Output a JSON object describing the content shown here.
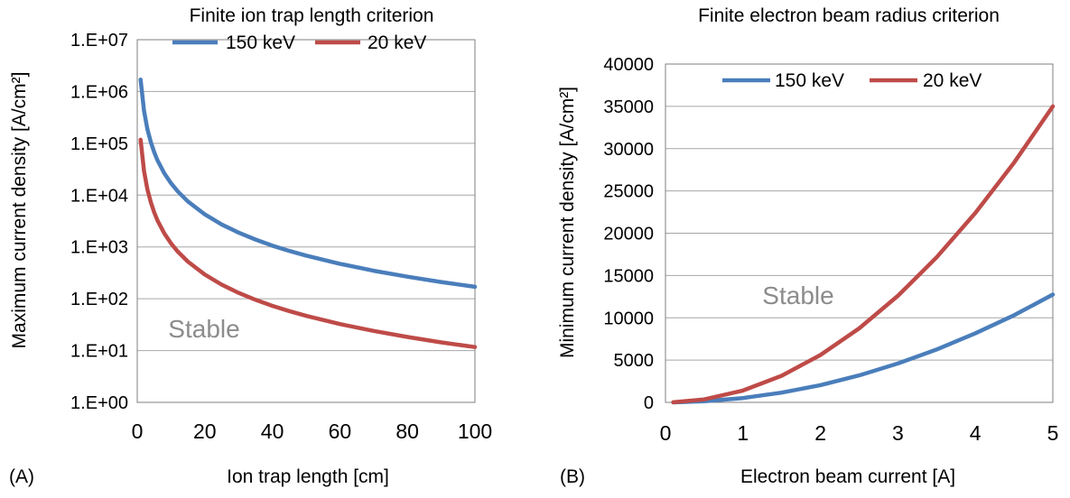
{
  "chart_data": [
    {
      "panel_label": "(A)",
      "type": "line",
      "title": "Finite ion trap length criterion",
      "xlabel": "Ion trap length [cm]",
      "ylabel": "Maximum current density [A/cm²]",
      "yscale": "log",
      "xlim": [
        0,
        100
      ],
      "ylim": [
        1,
        10000000
      ],
      "x_ticks": [
        "0",
        "20",
        "40",
        "60",
        "80",
        "100"
      ],
      "y_ticks": [
        "1.E+00",
        "1.E+01",
        "1.E+02",
        "1.E+03",
        "1.E+04",
        "1.E+05",
        "1.E+06",
        "1.E+07"
      ],
      "grid": "horizontal",
      "legend": "top",
      "annotation": "Stable",
      "series": [
        {
          "name": "150 keV",
          "color": "#4a7ebb",
          "x": [
            1,
            2,
            3,
            4,
            5,
            6,
            8,
            10,
            12,
            15,
            20,
            25,
            30,
            35,
            40,
            45,
            50,
            60,
            70,
            80,
            90,
            100
          ],
          "y": [
            1700000,
            425000,
            189000,
            106000,
            68000,
            47000,
            26500,
            17000,
            11800,
            7550,
            4250,
            2720,
            1890,
            1390,
            1060,
            840,
            680,
            472,
            347,
            266,
            210,
            170
          ]
        },
        {
          "name": "20 keV",
          "color": "#be4b48",
          "x": [
            1,
            2,
            3,
            4,
            5,
            6,
            8,
            10,
            12,
            15,
            20,
            25,
            30,
            35,
            40,
            45,
            50,
            60,
            70,
            80,
            90,
            100
          ],
          "y": [
            117000,
            29250,
            13000,
            7310,
            4680,
            3250,
            1830,
            1170,
            813,
            520,
            293,
            187,
            130,
            95.5,
            73.1,
            57.8,
            46.8,
            32.5,
            23.9,
            18.3,
            14.4,
            11.7
          ]
        }
      ]
    },
    {
      "panel_label": "(B)",
      "type": "line",
      "title": "Finite electron beam radius criterion",
      "xlabel": "Electron beam current [A]",
      "ylabel": "Minimum current density [A/cm²]",
      "yscale": "linear",
      "xlim": [
        0,
        5
      ],
      "ylim": [
        0,
        40000
      ],
      "x_ticks": [
        "0",
        "1",
        "2",
        "3",
        "4",
        "5"
      ],
      "y_ticks": [
        "0",
        "5000",
        "10000",
        "15000",
        "20000",
        "25000",
        "30000",
        "35000",
        "40000"
      ],
      "grid": "horizontal",
      "legend": "top",
      "annotation": "Stable",
      "series": [
        {
          "name": "150 keV",
          "color": "#4a7ebb",
          "x": [
            0.1,
            0.5,
            1,
            1.5,
            2,
            2.5,
            3,
            3.5,
            4,
            4.5,
            5
          ],
          "y": [
            5,
            130,
            510,
            1150,
            2040,
            3190,
            4600,
            6250,
            8170,
            10300,
            12750
          ]
        },
        {
          "name": "20 keV",
          "color": "#be4b48",
          "x": [
            0.1,
            0.5,
            1,
            1.5,
            2,
            2.5,
            3,
            3.5,
            4,
            4.5,
            5
          ],
          "y": [
            14,
            350,
            1400,
            3150,
            5600,
            8750,
            12600,
            17150,
            22400,
            28350,
            35000
          ]
        }
      ]
    }
  ]
}
